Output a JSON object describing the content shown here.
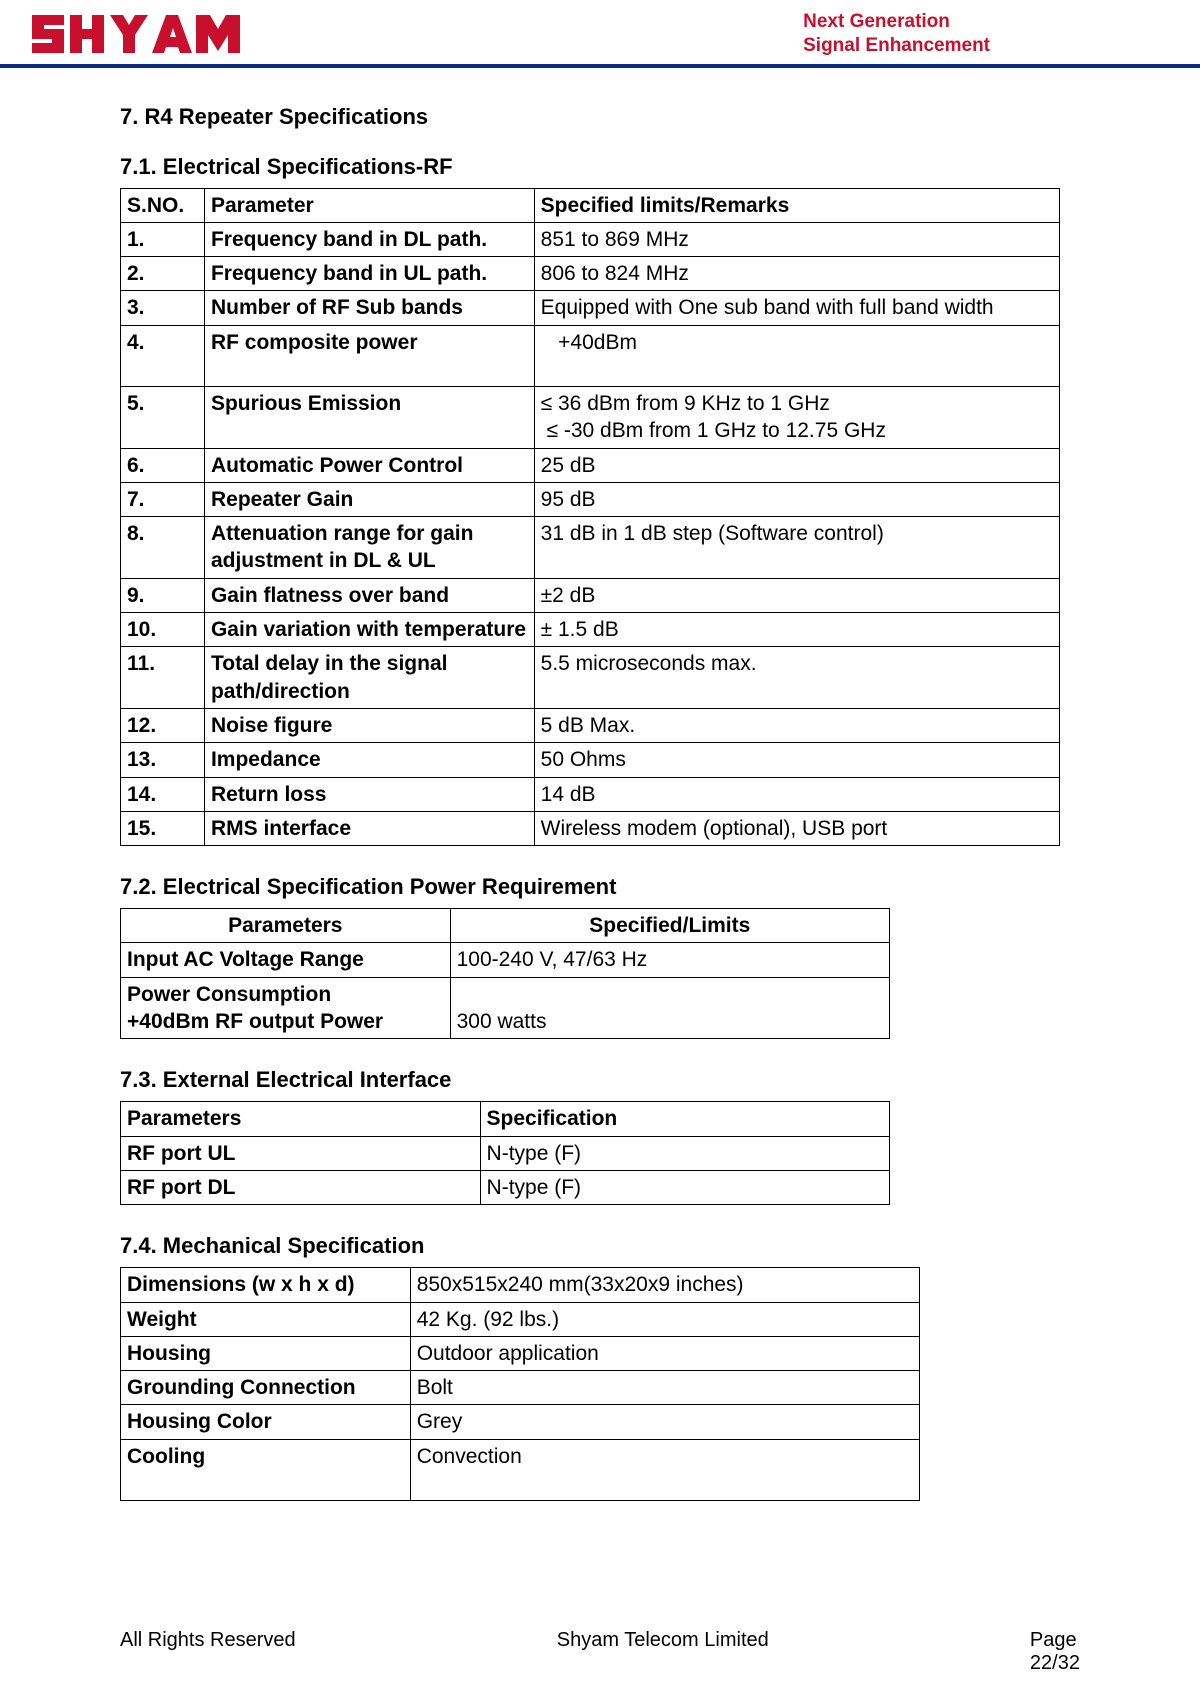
{
  "header": {
    "logo_text": "SHYAM",
    "tagline_line1": "Next Generation",
    "tagline_line2": "Signal Enhancement",
    "logo_color": "#c8102e",
    "underline_color": "#0a2a7a"
  },
  "section7": {
    "title": "7. R4 Repeater Specifications",
    "sec71_title": "7.1. Electrical Specifications-RF",
    "table1": {
      "headers": {
        "sno": "S.NO.",
        "param": "Parameter",
        "spec": "Specified limits/Remarks"
      },
      "rows": [
        {
          "sno": "1.",
          "param": "Frequency band in DL path.",
          "spec": "851 to 869 MHz"
        },
        {
          "sno": "2.",
          "param": "Frequency band in UL path.",
          "spec": "806 to 824 MHz"
        },
        {
          "sno": "3.",
          "param": "Number of RF Sub bands",
          "spec": "Equipped with One sub band with full band width"
        },
        {
          "sno": "4.",
          "param": "RF composite power",
          "spec": "   +40dBm",
          "tall": true
        },
        {
          "sno": "5.",
          "param": "Spurious Emission",
          "spec": "≤ 36 dBm from 9 KHz to 1 GHz\n ≤ -30 dBm from 1 GHz to 12.75 GHz"
        },
        {
          "sno": "6.",
          "param": "Automatic Power Control",
          "spec": "25 dB"
        },
        {
          "sno": "7.",
          "param": "Repeater Gain",
          "spec": "95 dB"
        },
        {
          "sno": "8.",
          "param": "Attenuation range for gain adjustment in DL & UL",
          "spec": "31 dB in 1 dB step (Software control)"
        },
        {
          "sno": "9.",
          "param": "Gain flatness over band",
          "spec": "±2 dB"
        },
        {
          "sno": "10.",
          "param": "Gain variation with temperature",
          "spec": "± 1.5 dB"
        },
        {
          "sno": "11.",
          "param": "Total delay in the signal path/direction",
          "spec": "5.5 microseconds max."
        },
        {
          "sno": "12.",
          "param": "Noise figure",
          "spec": "5 dB Max."
        },
        {
          "sno": "13.",
          "param": "Impedance",
          "spec": "50 Ohms"
        },
        {
          "sno": "14.",
          "param": "Return loss",
          "spec": "14 dB"
        },
        {
          "sno": "15.",
          "param": "RMS interface",
          "spec": "Wireless modem (optional), USB port"
        }
      ]
    },
    "sec72_title": "7.2. Electrical Specification Power Requirement",
    "table2": {
      "headers": {
        "param": "Parameters",
        "spec": "Specified/Limits"
      },
      "rows": [
        {
          "param": "Input AC Voltage Range",
          "spec": "100-240 V, 47/63 Hz"
        },
        {
          "param": "Power Consumption\n+40dBm RF output Power",
          "spec": "\n300 watts"
        }
      ]
    },
    "sec73_title": "7.3. External Electrical Interface",
    "table3": {
      "headers": {
        "param": "Parameters",
        "spec": "Specification"
      },
      "rows": [
        {
          "param": "RF port UL",
          "spec": "N-type (F)"
        },
        {
          "param": "RF port DL",
          "spec": "N-type (F)"
        }
      ]
    },
    "sec74_title": "7.4. Mechanical Specification",
    "table4": {
      "rows": [
        {
          "param": "Dimensions (w x h x d)",
          "spec": "850x515x240 mm(33x20x9 inches)"
        },
        {
          "param": "Weight",
          "spec": "42 Kg. (92 lbs.)"
        },
        {
          "param": "Housing",
          "spec": "Outdoor application"
        },
        {
          "param": "Grounding Connection",
          "spec": "Bolt"
        },
        {
          "param": "Housing Color",
          "spec": "Grey"
        },
        {
          "param": "Cooling",
          "spec": "Convection",
          "tall": true
        }
      ]
    }
  },
  "footer": {
    "left": "All Rights Reserved",
    "center": "Shyam Telecom Limited",
    "page_label": "Page",
    "page_num": "22/32"
  }
}
